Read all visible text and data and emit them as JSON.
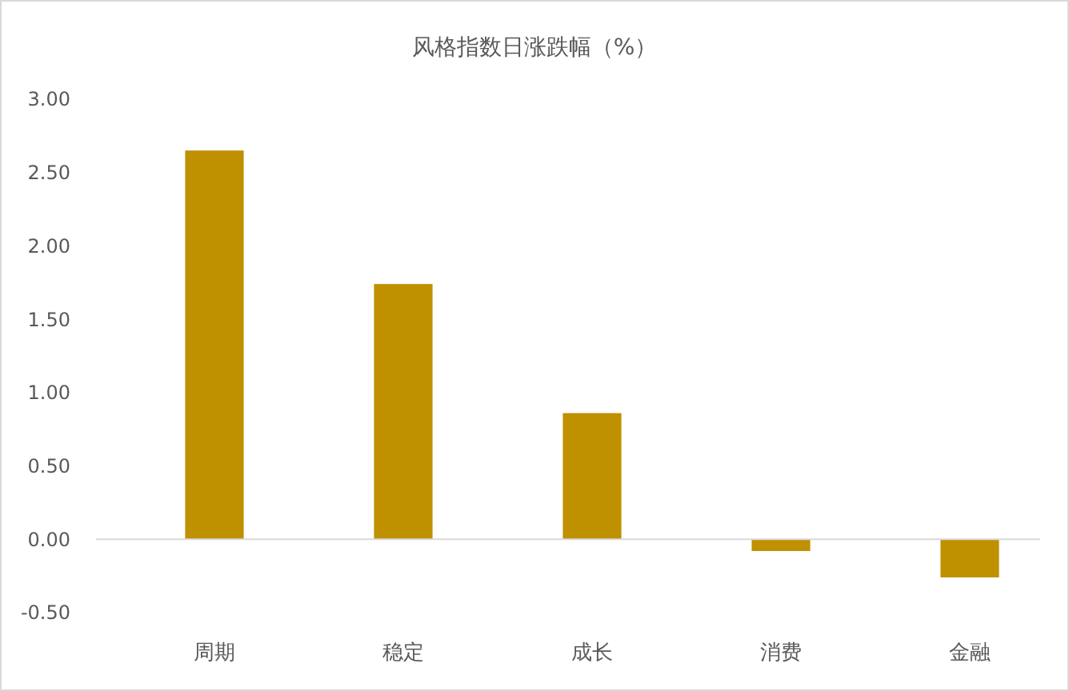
{
  "chart_data": {
    "type": "bar",
    "title": "风格指数日涨跌幅（%）",
    "categories": [
      "周期",
      "稳定",
      "成长",
      "消费",
      "金融"
    ],
    "values": [
      2.65,
      1.74,
      0.86,
      -0.08,
      -0.26
    ],
    "color": "#bf9000",
    "ylim": [
      -0.5,
      3
    ],
    "yticks": [
      {
        "value": -0.5,
        "label": "-0.50"
      },
      {
        "value": 0,
        "label": "0.00"
      },
      {
        "value": 0.5,
        "label": "0.50"
      },
      {
        "value": 1,
        "label": "1.00"
      },
      {
        "value": 1.5,
        "label": "1.50"
      },
      {
        "value": 2,
        "label": "2.00"
      },
      {
        "value": 2.5,
        "label": "2.50"
      },
      {
        "value": 3,
        "label": "3.00"
      }
    ]
  }
}
